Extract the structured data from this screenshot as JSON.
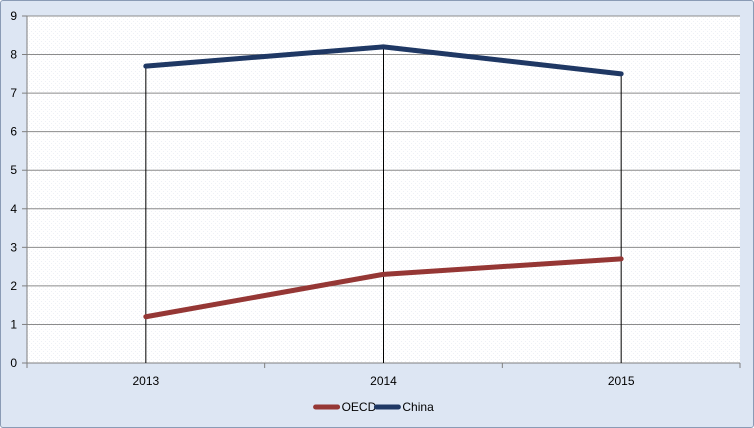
{
  "chart_data": {
    "type": "line",
    "title": "",
    "xlabel": "",
    "ylabel": "",
    "categories": [
      "2013",
      "2014",
      "2015"
    ],
    "series": [
      {
        "name": "OECD",
        "values": [
          1.2,
          2.3,
          2.7
        ],
        "color": "#953735"
      },
      {
        "name": "China",
        "values": [
          7.7,
          8.2,
          7.5
        ],
        "color": "#1f3864"
      }
    ],
    "ylim": [
      0,
      9
    ],
    "yticks": [
      "0",
      "1",
      "2",
      "3",
      "4",
      "5",
      "6",
      "7",
      "8",
      "9"
    ],
    "grid": "horizontal",
    "drop_lines": true,
    "legend": "bottom"
  }
}
